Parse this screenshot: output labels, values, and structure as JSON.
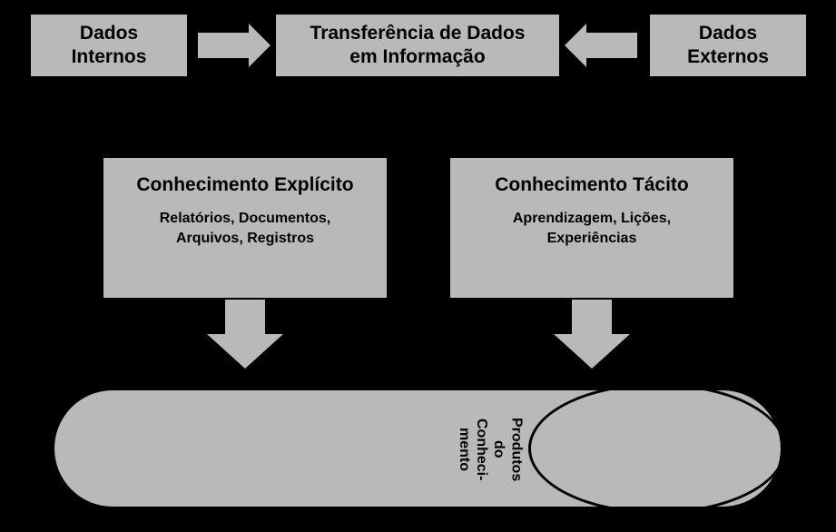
{
  "diagram": {
    "type": "flowchart",
    "background_color": "#000000",
    "box_fill": "#b9b9b9",
    "box_border": "#000000",
    "arrow_fill": "#b9b9b9",
    "text_color": "#000000",
    "title_fontsize_pt": 16,
    "subtitle_fontsize_pt": 12,
    "top": {
      "left": {
        "line1": "Dados",
        "line2": "Internos"
      },
      "center": {
        "line1": "Transferência de Dados",
        "line2": "em Informação"
      },
      "right": {
        "line1": "Dados",
        "line2": "Externos"
      }
    },
    "middle": {
      "explicit": {
        "title": "Conhecimento Explícito",
        "sub_line1": "Relatórios,  Documentos,",
        "sub_line2": "Arquivos, Registros"
      },
      "tacit": {
        "title": "Conhecimento Tácito",
        "sub_line1": "Aprendizagem, Lições,",
        "sub_line2": "Experiências"
      }
    },
    "bottom": {
      "label_line1": "Produtos",
      "label_line2": "do",
      "label_line3": "Conheci-",
      "label_line4": "mento"
    },
    "edges": [
      {
        "from": "dados-internos",
        "to": "transferencia-centro",
        "dir": "right"
      },
      {
        "from": "dados-externos",
        "to": "transferencia-centro",
        "dir": "left"
      },
      {
        "from": "conhecimento-explicito",
        "to": "capsule",
        "dir": "down"
      },
      {
        "from": "conhecimento-tacito",
        "to": "capsule",
        "dir": "down"
      }
    ]
  }
}
